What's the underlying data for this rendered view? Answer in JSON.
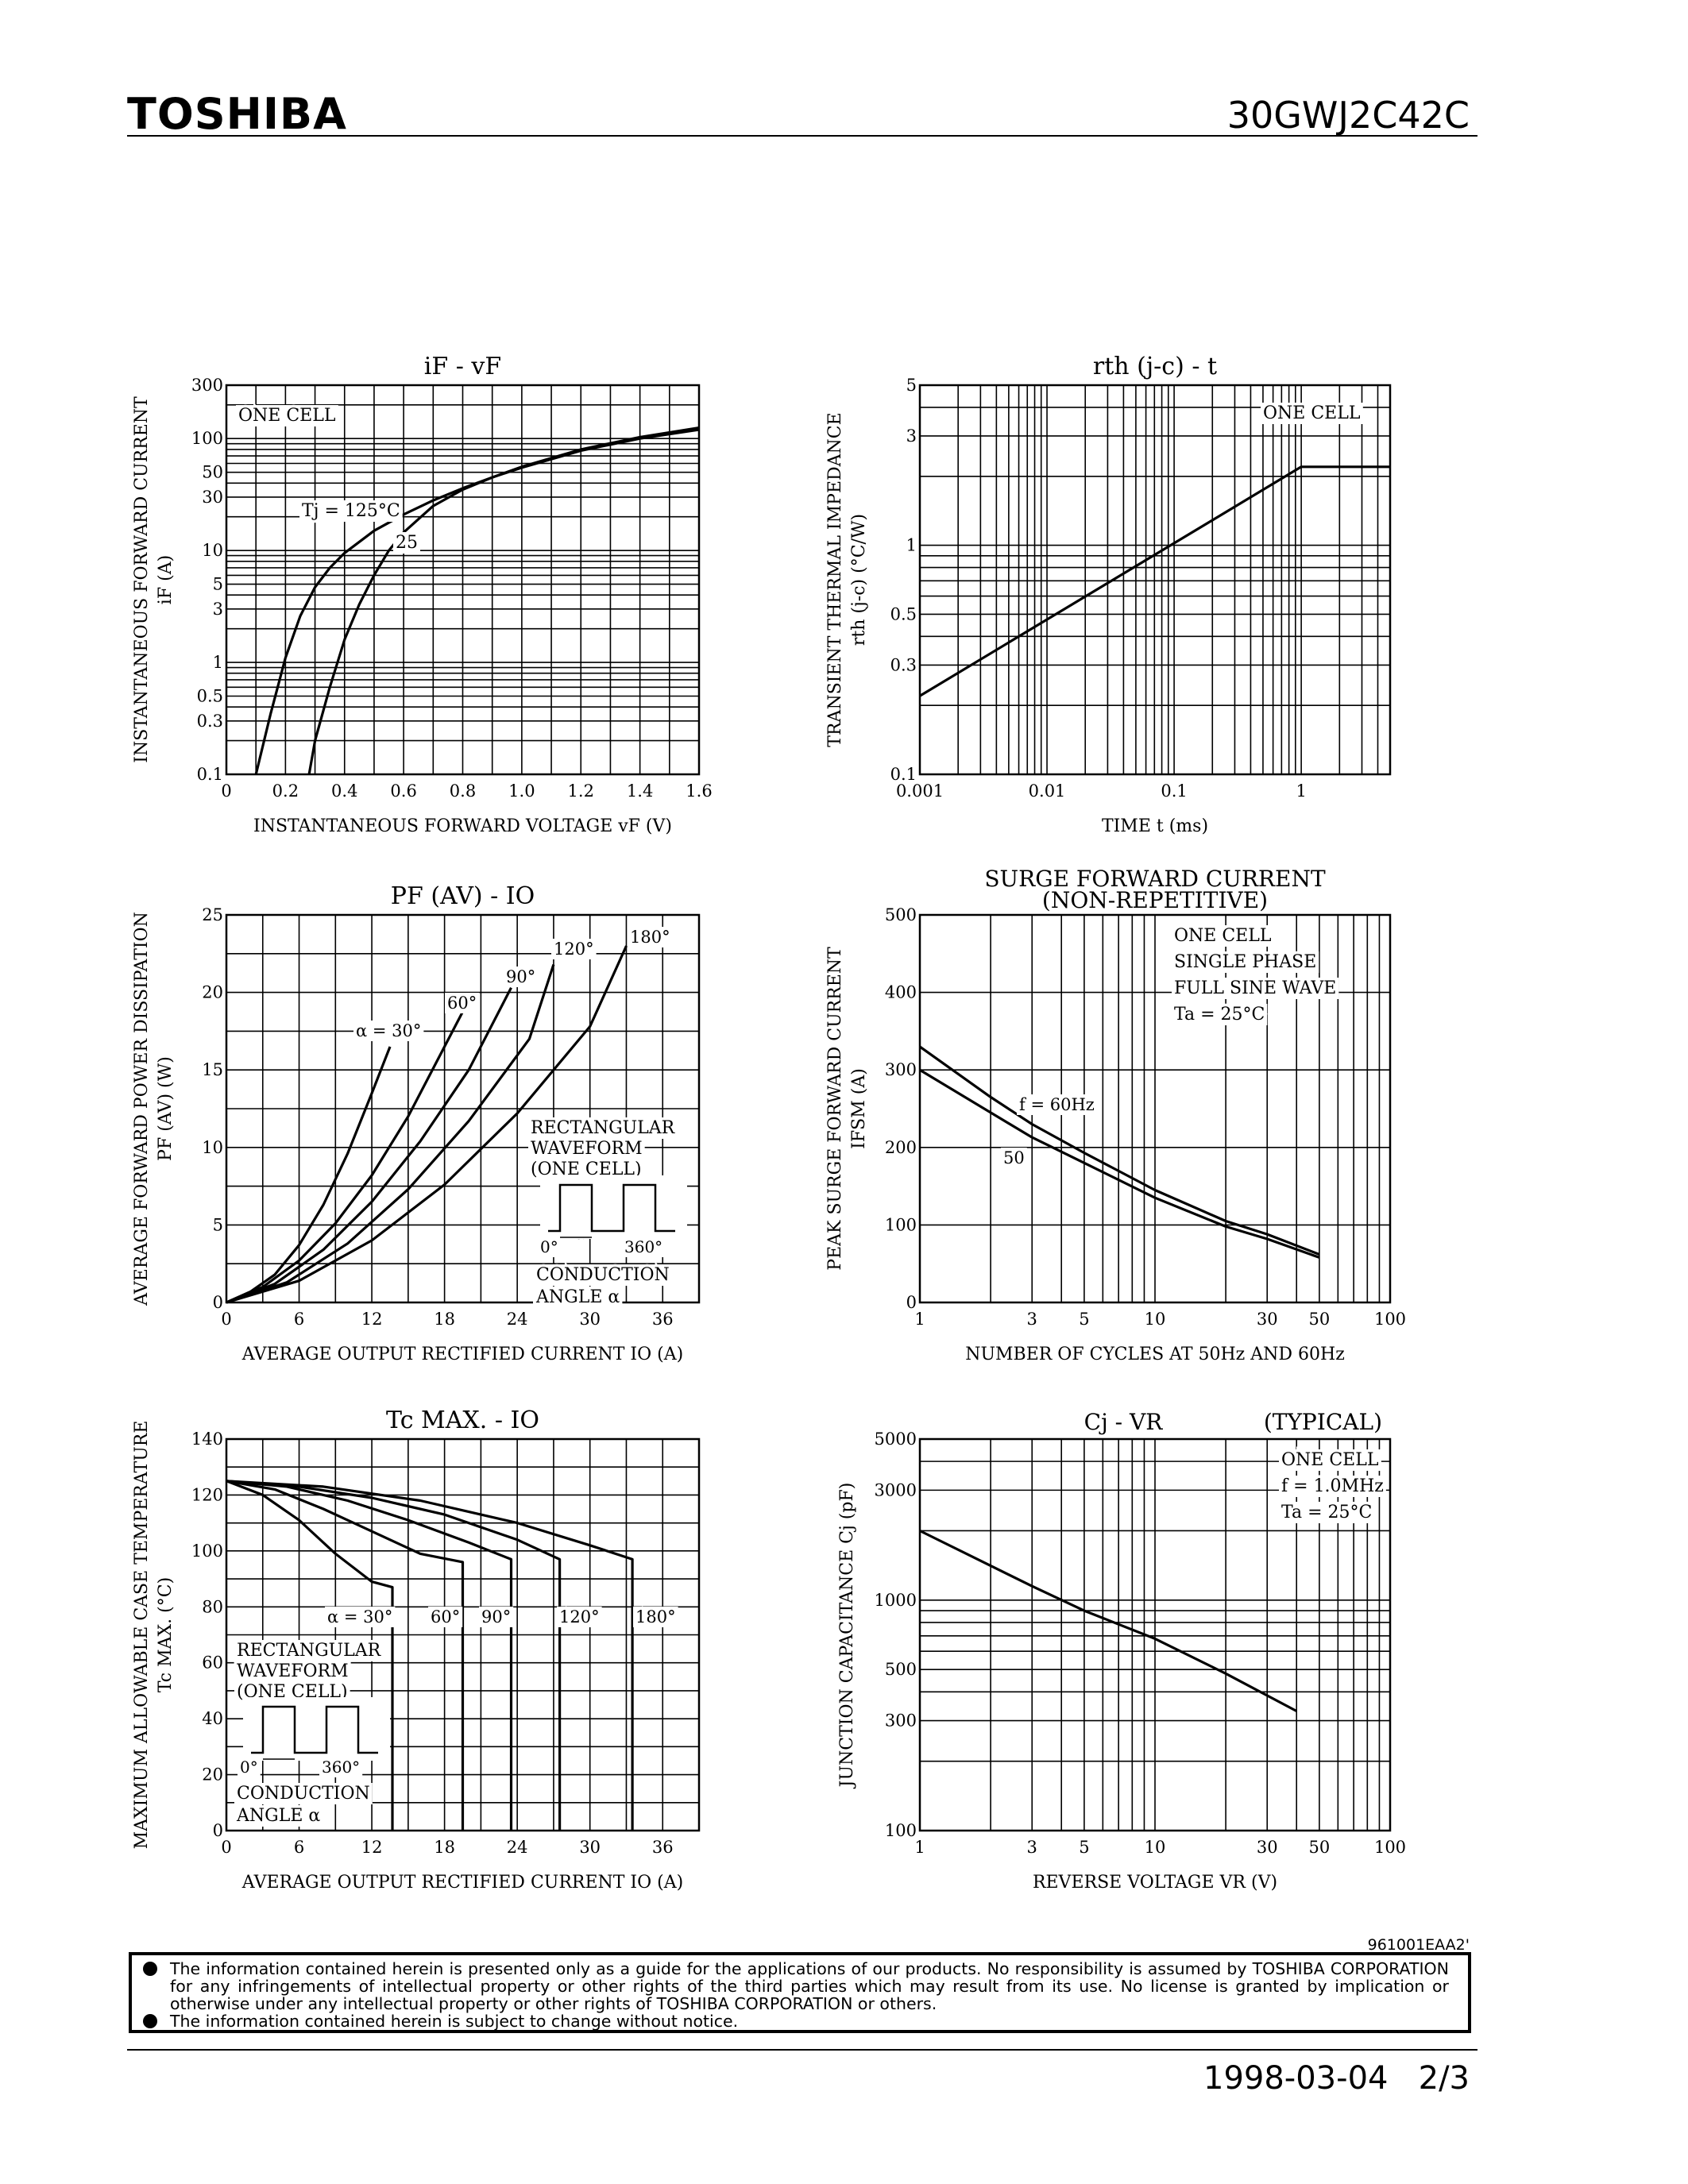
{
  "header": {
    "brand": "TOSHIBA",
    "part_number": "30GWJ2C42C"
  },
  "footer": {
    "doc_code": "961001EAA2'",
    "notice_1": "The information contained herein is presented only as a guide for the applications of our products. No responsibility is assumed by TOSHIBA CORPORATION for any infringements of intellectual property or other rights of the third parties which may result from its use. No license is granted by implication or otherwise under any intellectual property or other rights of TOSHIBA CORPORATION or others.",
    "notice_2": "The information contained herein is subject to change without notice.",
    "date": "1998-03-04",
    "page": "2/3"
  },
  "chart_data": [
    {
      "id": "if_vf",
      "type": "line",
      "title": "iF - vF",
      "xlabel": "INSTANTANEOUS FORWARD VOLTAGE vF (V)",
      "ylabel": [
        "INSTANTANEOUS FORWARD CURRENT",
        "iF (A)"
      ],
      "xscale": "linear",
      "yscale": "log",
      "xlim": [
        0,
        1.6
      ],
      "ylim": [
        0.1,
        300
      ],
      "xticks": [
        0,
        0.2,
        0.4,
        0.6,
        0.8,
        1.0,
        1.2,
        1.4,
        1.6
      ],
      "xtick_labels": [
        "0",
        "0.2",
        "0.4",
        "0.6",
        "0.8",
        "1.0",
        "1.2",
        "1.4",
        "1.6"
      ],
      "yticks": [
        0.1,
        0.3,
        0.5,
        1,
        3,
        5,
        10,
        30,
        50,
        100,
        300
      ],
      "ytick_labels": [
        "0.1",
        "0.3",
        "0.5",
        "1",
        "3",
        "5",
        "10",
        "30",
        "50",
        "100",
        "300"
      ],
      "xgrid": [
        0.1,
        0.2,
        0.3,
        0.4,
        0.5,
        0.6,
        0.7,
        0.8,
        0.9,
        1.0,
        1.1,
        1.2,
        1.3,
        1.4,
        1.5
      ],
      "ygrid": [
        0.2,
        0.3,
        0.4,
        0.5,
        0.6,
        0.7,
        0.8,
        0.9,
        1,
        2,
        3,
        4,
        5,
        6,
        7,
        8,
        9,
        10,
        20,
        30,
        40,
        50,
        60,
        70,
        80,
        90,
        100,
        200
      ],
      "grid": true,
      "annotations": [
        "ONE CELL",
        "Tj = 125°C",
        "25"
      ],
      "series": [
        {
          "x": [
            0.1,
            0.15,
            0.2,
            0.25,
            0.3,
            0.35,
            0.4,
            0.5,
            0.6,
            0.7,
            0.8,
            0.9,
            1.0,
            1.2,
            1.4,
            1.6
          ],
          "values": [
            0.1,
            0.35,
            1.1,
            2.6,
            4.7,
            7.0,
            9.5,
            15,
            21,
            28,
            36,
            45,
            55,
            78,
            100,
            120
          ]
        },
        {
          "x": [
            0.28,
            0.3,
            0.35,
            0.4,
            0.45,
            0.5,
            0.55,
            0.6,
            0.7,
            0.8,
            0.9,
            1.0,
            1.2,
            1.4,
            1.6
          ],
          "values": [
            0.1,
            0.2,
            0.6,
            1.6,
            3.3,
            6,
            10,
            14.5,
            25,
            35,
            45,
            56,
            80,
            103,
            125
          ]
        }
      ]
    },
    {
      "id": "rth_t",
      "type": "line",
      "title": "rth (j-c) - t",
      "xlabel": "TIME t (ms)",
      "ylabel": [
        "TRANSIENT THERMAL IMPEDANCE",
        "rth (j-c) (°C/W)"
      ],
      "xscale": "log",
      "yscale": "log",
      "xlim": [
        0.001,
        5
      ],
      "ylim": [
        0.1,
        5
      ],
      "xticks": [
        0.001,
        0.01,
        0.1,
        1
      ],
      "xtick_labels": [
        "0.001",
        "0.01",
        "0.1",
        "1"
      ],
      "yticks": [
        0.1,
        0.3,
        0.5,
        1,
        3,
        5
      ],
      "ytick_labels": [
        "0.1",
        "0.3",
        "0.5",
        "1",
        "3",
        "5"
      ],
      "xgrid": [
        0.002,
        0.003,
        0.004,
        0.005,
        0.006,
        0.007,
        0.008,
        0.009,
        0.01,
        0.02,
        0.03,
        0.04,
        0.05,
        0.06,
        0.07,
        0.08,
        0.09,
        0.1,
        0.2,
        0.3,
        0.4,
        0.5,
        0.6,
        0.7,
        0.8,
        0.9,
        1,
        2,
        3,
        4
      ],
      "ygrid": [
        0.2,
        0.3,
        0.4,
        0.5,
        0.6,
        0.7,
        0.8,
        0.9,
        1,
        2,
        3,
        4
      ],
      "grid": true,
      "annotations": [
        "ONE CELL"
      ],
      "series": [
        {
          "x": [
            0.001,
            1,
            5
          ],
          "values": [
            0.22,
            2.2,
            2.2
          ]
        }
      ]
    },
    {
      "id": "pf_io",
      "type": "line",
      "title": "PF (AV) - IO",
      "xlabel": "AVERAGE OUTPUT RECTIFIED CURRENT IO (A)",
      "ylabel": [
        "AVERAGE FORWARD POWER DISSIPATION",
        "PF (AV) (W)"
      ],
      "xscale": "linear",
      "yscale": "linear",
      "xlim": [
        0,
        39
      ],
      "ylim": [
        0,
        25
      ],
      "xticks": [
        0,
        6,
        12,
        18,
        24,
        30,
        36
      ],
      "xtick_labels": [
        "0",
        "6",
        "12",
        "18",
        "24",
        "30",
        "36"
      ],
      "yticks": [
        0,
        5,
        10,
        15,
        20,
        25
      ],
      "ytick_labels": [
        "0",
        "5",
        "10",
        "15",
        "20",
        "25"
      ],
      "xgrid": [
        3,
        6,
        9,
        12,
        15,
        18,
        21,
        24,
        27,
        30,
        33,
        36
      ],
      "ygrid": [
        2.5,
        5,
        7.5,
        10,
        12.5,
        15,
        17.5,
        20,
        22.5
      ],
      "grid": true,
      "annotations": [
        "α = 30°",
        "60°",
        "90°",
        "120°",
        "180°",
        "RECTANGULAR",
        "WAVEFORM",
        "(ONE CELL)",
        "0°",
        "α",
        "360°",
        "CONDUCTION",
        "ANGLE α"
      ],
      "series": [
        {
          "name": "α = 30°",
          "x": [
            0,
            2,
            4,
            6,
            8,
            10,
            12,
            13.5
          ],
          "values": [
            0,
            0.7,
            1.8,
            3.7,
            6.3,
            9.6,
            13.5,
            16.5
          ]
        },
        {
          "name": "60°",
          "x": [
            0,
            3,
            6,
            9,
            12,
            15,
            18,
            20
          ],
          "values": [
            0,
            1,
            2.7,
            5.1,
            8.2,
            12.0,
            16.5,
            19.5
          ]
        },
        {
          "name": "90°",
          "x": [
            0,
            4,
            8,
            12,
            16,
            20,
            23.5
          ],
          "values": [
            0,
            1.2,
            3.4,
            6.5,
            10.4,
            15.0,
            20.3
          ]
        },
        {
          "name": "120°",
          "x": [
            0,
            5,
            10,
            15,
            20,
            25,
            27
          ],
          "values": [
            0,
            1.3,
            3.8,
            7.3,
            11.7,
            17.0,
            21.8
          ]
        },
        {
          "name": "180°",
          "x": [
            0,
            6,
            12,
            18,
            24,
            30,
            33
          ],
          "values": [
            0,
            1.4,
            4.0,
            7.6,
            12.2,
            17.8,
            23.0
          ]
        }
      ]
    },
    {
      "id": "ifsm_n",
      "type": "line",
      "title": [
        "SURGE FORWARD CURRENT",
        "(NON-REPETITIVE)"
      ],
      "xlabel": "NUMBER OF CYCLES AT 50Hz AND 60Hz",
      "ylabel": [
        "PEAK SURGE FORWARD CURRENT",
        "IFSM (A)"
      ],
      "xscale": "log",
      "yscale": "linear",
      "xlim": [
        1,
        100
      ],
      "ylim": [
        0,
        500
      ],
      "xticks": [
        1,
        3,
        5,
        10,
        30,
        50,
        100
      ],
      "xtick_labels": [
        "1",
        "3",
        "5",
        "10",
        "30",
        "50",
        "100"
      ],
      "yticks": [
        0,
        100,
        200,
        300,
        400,
        500
      ],
      "ytick_labels": [
        "0",
        "100",
        "200",
        "300",
        "400",
        "500"
      ],
      "xgrid": [
        2,
        3,
        4,
        5,
        6,
        7,
        8,
        9,
        10,
        20,
        30,
        40,
        50,
        60,
        70,
        80,
        90
      ],
      "ygrid": [
        100,
        200,
        300,
        400
      ],
      "grid": true,
      "annotations": [
        "ONE CELL",
        "SINGLE PHASE",
        "FULL SINE WAVE",
        "Ta = 25°C",
        "f = 60Hz",
        "50"
      ],
      "series": [
        {
          "name": "f = 60Hz",
          "x": [
            1,
            2,
            3,
            5,
            10,
            20,
            30,
            50
          ],
          "values": [
            330,
            265,
            230,
            193,
            145,
            105,
            88,
            62
          ]
        },
        {
          "name": "50",
          "x": [
            1,
            2,
            3,
            5,
            10,
            20,
            30,
            50
          ],
          "values": [
            300,
            245,
            213,
            180,
            135,
            98,
            82,
            58
          ]
        }
      ]
    },
    {
      "id": "tc_io",
      "type": "line",
      "title": "Tc MAX. - IO",
      "xlabel": "AVERAGE OUTPUT RECTIFIED CURRENT IO (A)",
      "ylabel": [
        "MAXIMUM ALLOWABLE CASE TEMPERATURE",
        "Tc MAX. (°C)"
      ],
      "xscale": "linear",
      "yscale": "linear",
      "xlim": [
        0,
        39
      ],
      "ylim": [
        0,
        140
      ],
      "xticks": [
        0,
        6,
        12,
        18,
        24,
        30,
        36
      ],
      "xtick_labels": [
        "0",
        "6",
        "12",
        "18",
        "24",
        "30",
        "36"
      ],
      "yticks": [
        0,
        20,
        40,
        60,
        80,
        100,
        120,
        140
      ],
      "ytick_labels": [
        "0",
        "20",
        "40",
        "60",
        "80",
        "100",
        "120",
        "140"
      ],
      "xgrid": [
        3,
        6,
        9,
        12,
        15,
        18,
        21,
        24,
        27,
        30,
        33,
        36
      ],
      "ygrid": [
        10,
        20,
        30,
        40,
        50,
        60,
        70,
        80,
        90,
        100,
        110,
        120,
        130
      ],
      "grid": true,
      "annotations": [
        "α = 30°",
        "60°",
        "90°",
        "120°",
        "180°",
        "RECTANGULAR",
        "WAVEFORM",
        "(ONE CELL)",
        "0°",
        "α",
        "360°",
        "CONDUCTION",
        "ANGLE α"
      ],
      "series": [
        {
          "name": "α = 30°",
          "x": [
            0,
            3,
            6,
            9,
            12,
            13.7,
            13.7
          ],
          "values": [
            125,
            120,
            111,
            99,
            89,
            87,
            0
          ]
        },
        {
          "name": "60°",
          "x": [
            0,
            4,
            8,
            12,
            16,
            19.5,
            19.5
          ],
          "values": [
            125,
            122,
            115,
            107,
            99,
            96,
            0
          ]
        },
        {
          "name": "90°",
          "x": [
            0,
            5,
            10,
            15,
            20,
            23.5,
            23.5
          ],
          "values": [
            125,
            123,
            118,
            111,
            103,
            97,
            0
          ]
        },
        {
          "name": "120°",
          "x": [
            0,
            6,
            12,
            18,
            24,
            27.5,
            27.5
          ],
          "values": [
            125,
            123,
            119,
            113,
            104,
            97,
            0
          ]
        },
        {
          "name": "180°",
          "x": [
            0,
            8,
            16,
            24,
            30,
            33.5,
            33.5
          ],
          "values": [
            125,
            123,
            118,
            110,
            102,
            97,
            0
          ]
        }
      ]
    },
    {
      "id": "cj_vr",
      "type": "line",
      "title": "Cj - VR",
      "subtitle": "(TYPICAL)",
      "xlabel": "REVERSE VOLTAGE VR (V)",
      "ylabel": [
        "JUNCTION CAPACITANCE Cj (pF)"
      ],
      "xscale": "log",
      "yscale": "log",
      "xlim": [
        1,
        100
      ],
      "ylim": [
        100,
        5000
      ],
      "xticks": [
        1,
        3,
        5,
        10,
        30,
        50,
        100
      ],
      "xtick_labels": [
        "1",
        "3",
        "5",
        "10",
        "30",
        "50",
        "100"
      ],
      "yticks": [
        100,
        300,
        500,
        1000,
        3000,
        5000
      ],
      "ytick_labels": [
        "100",
        "300",
        "500",
        "1000",
        "3000",
        "5000"
      ],
      "xgrid": [
        2,
        3,
        4,
        5,
        6,
        7,
        8,
        9,
        10,
        20,
        30,
        40,
        50,
        60,
        70,
        80,
        90
      ],
      "ygrid": [
        200,
        300,
        400,
        500,
        600,
        700,
        800,
        900,
        1000,
        2000,
        3000,
        4000
      ],
      "grid": true,
      "annotations": [
        "ONE CELL",
        "f = 1.0MHz",
        "Ta = 25°C"
      ],
      "series": [
        {
          "x": [
            1,
            3,
            5,
            10,
            20,
            40
          ],
          "values": [
            2000,
            1150,
            900,
            680,
            480,
            330
          ]
        }
      ]
    }
  ]
}
